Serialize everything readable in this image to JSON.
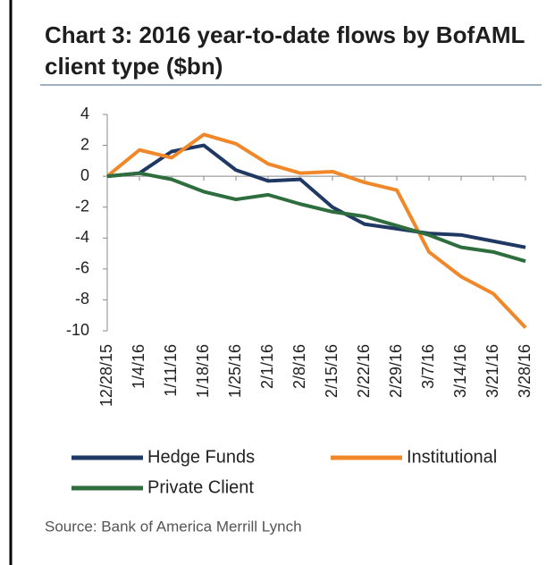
{
  "chart_data": {
    "type": "line",
    "title": "Chart 3: 2016 year-to-date flows by BofAML client type ($bn)",
    "source": "Source: Bank of America Merrill Lynch",
    "categories": [
      "12/28/15",
      "1/4/16",
      "1/11/16",
      "1/18/16",
      "1/25/16",
      "2/1/16",
      "2/8/16",
      "2/15/16",
      "2/22/16",
      "2/29/16",
      "3/7/16",
      "3/14/16",
      "3/21/16",
      "3/28/16"
    ],
    "series": [
      {
        "name": "Hedge Funds",
        "color": "#1f3864",
        "values": [
          0,
          0.2,
          1.6,
          2.0,
          0.4,
          -0.3,
          -0.2,
          -2.0,
          -3.1,
          -3.4,
          -3.7,
          -3.8,
          -4.2,
          -4.6
        ]
      },
      {
        "name": "Institutional",
        "color": "#f0882a",
        "values": [
          0,
          1.7,
          1.2,
          2.7,
          2.1,
          0.8,
          0.2,
          0.3,
          -0.4,
          -0.9,
          -4.9,
          -6.5,
          -7.6,
          -9.8
        ]
      },
      {
        "name": "Private Client",
        "color": "#2e6e3e",
        "values": [
          0,
          0.2,
          -0.2,
          -1.0,
          -1.5,
          -1.2,
          -1.8,
          -2.3,
          -2.6,
          -3.2,
          -3.8,
          -4.6,
          -4.9,
          -5.5
        ]
      }
    ],
    "ylim": [
      -10,
      4
    ],
    "yticks": [
      -10,
      -8,
      -6,
      -4,
      -2,
      0,
      2,
      4
    ],
    "grid": false
  }
}
